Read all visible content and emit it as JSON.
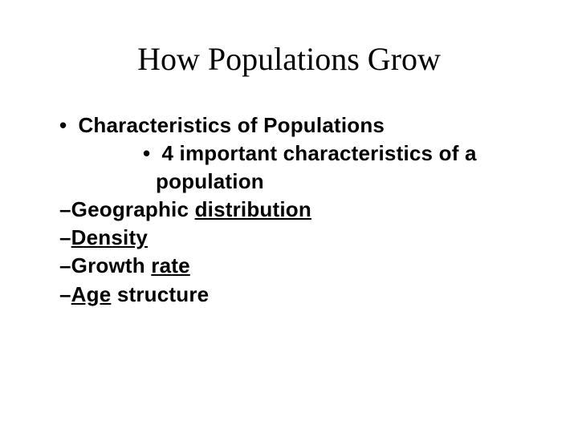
{
  "slide": {
    "title": "How Populations Grow",
    "background_color": "#ffffff",
    "title_font": "Times New Roman",
    "title_fontsize": 40,
    "title_color": "#000000",
    "body_font": "Arial",
    "body_fontsize": 26,
    "body_fontweight": 700,
    "body_color": "#000000",
    "lines": {
      "l1_text": "Characteristics of Populations",
      "l2_text": "4 important characteristics of a population",
      "d1_prefix": "–Geographic ",
      "d1_underlined": "distribution",
      "d2_prefix": "–",
      "d2_underlined": "Density",
      "d3_prefix": "–Growth ",
      "d3_underlined": "rate",
      "d4_prefix": "–",
      "d4_underlined": "Age",
      "d4_suffix": " structure"
    }
  }
}
